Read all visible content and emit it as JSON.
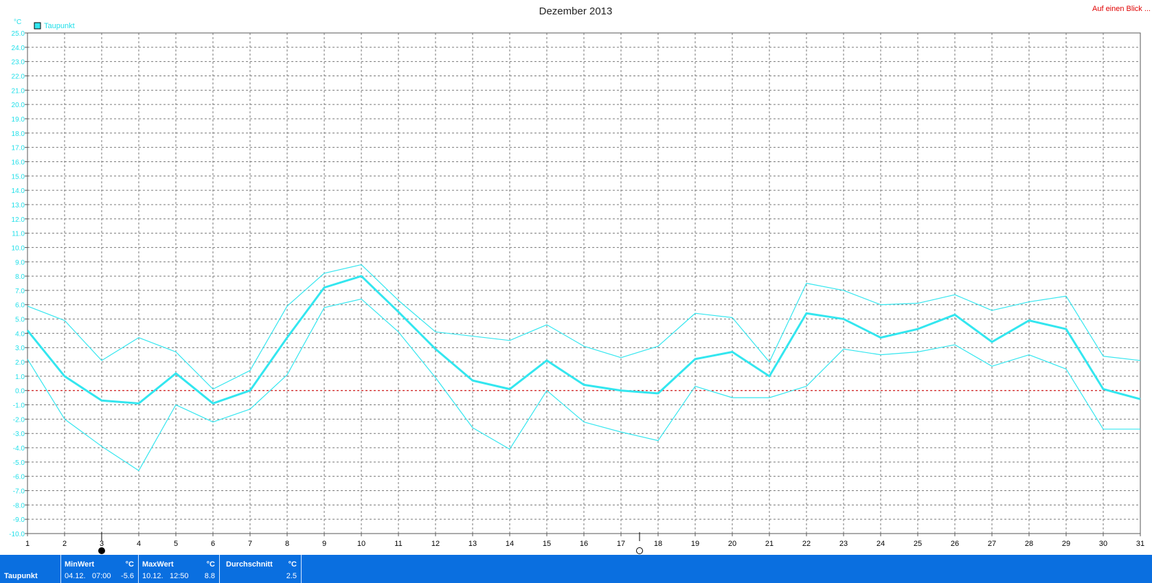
{
  "header": {
    "title": "Dezember 2013",
    "link": "Auf einen Blick ..."
  },
  "colors": {
    "series": "#33e6ef",
    "axis_text": "#20dfe9",
    "zero_line": "#e00000",
    "grid": "#777777",
    "footer_bg": "#0a6fe0",
    "link": "#e00000"
  },
  "chart_data": {
    "type": "line",
    "title": "Dezember 2013",
    "ylabel": "°C",
    "ylim": [
      -10,
      25
    ],
    "y_tick_step": 1,
    "xlim": [
      1,
      31
    ],
    "legend": {
      "position": "top-left",
      "entries": [
        "Taupunkt"
      ]
    },
    "grid": true,
    "zero_line": true,
    "x": [
      1,
      2,
      3,
      4,
      5,
      6,
      7,
      8,
      9,
      10,
      11,
      12,
      13,
      14,
      15,
      16,
      17,
      18,
      19,
      20,
      21,
      22,
      23,
      24,
      25,
      26,
      27,
      28,
      29,
      30,
      31
    ],
    "series": [
      {
        "name": "Taupunkt",
        "role": "mean",
        "values": [
          4.2,
          1.0,
          -0.7,
          -0.9,
          1.2,
          -0.9,
          0.0,
          3.7,
          7.2,
          8.0,
          5.5,
          2.9,
          0.7,
          0.1,
          2.1,
          0.4,
          0.0,
          -0.2,
          2.2,
          2.7,
          1.0,
          5.4,
          5.0,
          3.7,
          4.3,
          5.3,
          3.4,
          4.9,
          4.3,
          0.1,
          -0.6
        ]
      },
      {
        "role": "max",
        "values": [
          5.9,
          4.9,
          2.1,
          3.7,
          2.7,
          0.1,
          1.4,
          5.9,
          8.2,
          8.8,
          6.3,
          4.1,
          3.8,
          3.5,
          4.6,
          3.1,
          2.3,
          3.1,
          5.4,
          5.1,
          2.0,
          7.5,
          7.0,
          6.0,
          6.1,
          6.7,
          5.6,
          6.2,
          6.6,
          2.4,
          2.1
        ]
      },
      {
        "role": "min",
        "values": [
          2.2,
          -2.0,
          -3.9,
          -5.6,
          -1.0,
          -2.2,
          -1.3,
          1.1,
          5.8,
          6.4,
          4.1,
          0.9,
          -2.6,
          -4.1,
          0.0,
          -2.2,
          -2.9,
          -3.5,
          0.3,
          -0.5,
          -0.5,
          0.3,
          2.9,
          2.5,
          2.7,
          3.2,
          1.7,
          2.5,
          1.5,
          -2.7,
          -2.7
        ]
      }
    ],
    "markers": [
      {
        "day": 3,
        "symbol": "full-moon"
      },
      {
        "day": 17.5,
        "symbol": "new-moon"
      }
    ]
  },
  "footer": {
    "series_label": "Taupunkt",
    "min": {
      "header": "MinWert",
      "unit": "°C",
      "date": "04.12.",
      "time": "07:00",
      "value": "-5.6"
    },
    "max": {
      "header": "MaxWert",
      "unit": "°C",
      "date": "10.12.",
      "time": "12:50",
      "value": "8.8"
    },
    "avg": {
      "header": "Durchschnitt",
      "unit": "°C",
      "value": "2.5"
    }
  }
}
